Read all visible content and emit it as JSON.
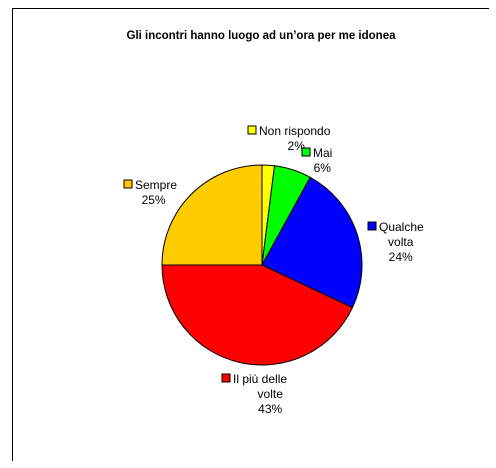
{
  "chart_data": {
    "type": "pie",
    "title": "Gli incontri hanno luogo ad un’ora per me idonea",
    "slices": [
      {
        "name": "Non rispondo",
        "label_lines": [
          "Non rispondo"
        ],
        "value": 2,
        "value_label": "2%",
        "color": "#FFFF00"
      },
      {
        "name": "Mai",
        "label_lines": [
          "Mai"
        ],
        "value": 6,
        "value_label": "6%",
        "color": "#00FF00"
      },
      {
        "name": "Qualche volta",
        "label_lines": [
          "Qualche",
          "volta"
        ],
        "value": 24,
        "value_label": "24%",
        "color": "#0000FF"
      },
      {
        "name": "Il più delle volte",
        "label_lines": [
          "Il più delle",
          "volte"
        ],
        "value": 43,
        "value_label": "43%",
        "color": "#FF0000"
      },
      {
        "name": "Sempre",
        "label_lines": [
          "Sempre"
        ],
        "value": 25,
        "value_label": "25%",
        "color": "#FFCC00"
      }
    ],
    "legend": "labels beside slices"
  }
}
